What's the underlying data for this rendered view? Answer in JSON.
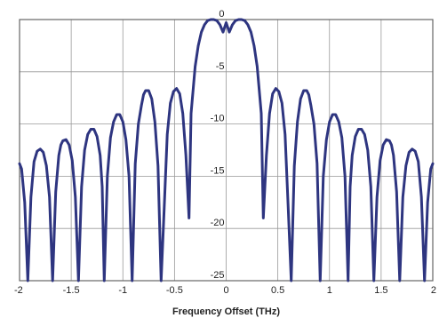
{
  "chart_data": {
    "type": "line",
    "title": "",
    "xlabel": "Frequency Offset (THz)",
    "ylabel": "",
    "xlim": [
      -2,
      2
    ],
    "ylim": [
      -25,
      0
    ],
    "x_ticks": [
      -2,
      -1.5,
      -1,
      -0.5,
      0,
      0.5,
      1,
      1.5,
      2
    ],
    "x_tick_labels": [
      "-2",
      "-1.5",
      "-1",
      "-0.5",
      "0",
      "0.5",
      "1",
      "1.5",
      "2"
    ],
    "y_ticks": [
      0,
      -5,
      -10,
      -15,
      -20,
      -25
    ],
    "y_tick_labels": [
      "0",
      "-5",
      "-10",
      "-15",
      "-20",
      "-25"
    ],
    "grid": true,
    "legend": "none",
    "colors": {
      "line": "#2e3580",
      "grid": "#999999",
      "frame": "#666666"
    },
    "series": [
      {
        "x": [
          -2.0,
          -1.98,
          -1.95,
          -1.92,
          -1.89,
          -1.86,
          -1.83,
          -1.8,
          -1.77,
          -1.74,
          -1.71,
          -1.68,
          -1.65,
          -1.62,
          -1.6,
          -1.58,
          -1.55,
          -1.52,
          -1.49,
          -1.46,
          -1.43,
          -1.4,
          -1.37,
          -1.34,
          -1.31,
          -1.28,
          -1.25,
          -1.22,
          -1.2,
          -1.18,
          -1.15,
          -1.12,
          -1.09,
          -1.06,
          -1.03,
          -1.0,
          -0.97,
          -0.94,
          -0.91,
          -0.88,
          -0.85,
          -0.82,
          -0.8,
          -0.78,
          -0.75,
          -0.72,
          -0.69,
          -0.66,
          -0.63,
          -0.6,
          -0.57,
          -0.54,
          -0.51,
          -0.48,
          -0.45,
          -0.42,
          -0.39,
          -0.36,
          -0.34,
          -0.3,
          -0.27,
          -0.24,
          -0.21,
          -0.18,
          -0.15,
          -0.12,
          -0.09,
          -0.06,
          -0.03,
          0.0,
          0.03,
          0.06,
          0.09,
          0.12,
          0.15,
          0.18,
          0.21,
          0.24,
          0.27,
          0.3,
          0.34,
          0.36,
          0.39,
          0.42,
          0.45,
          0.48,
          0.51,
          0.54,
          0.57,
          0.6,
          0.63,
          0.66,
          0.69,
          0.72,
          0.75,
          0.78,
          0.8,
          0.82,
          0.85,
          0.88,
          0.91,
          0.94,
          0.97,
          1.0,
          1.03,
          1.06,
          1.09,
          1.12,
          1.15,
          1.18,
          1.2,
          1.22,
          1.25,
          1.28,
          1.31,
          1.34,
          1.37,
          1.4,
          1.43,
          1.46,
          1.49,
          1.52,
          1.55,
          1.58,
          1.6,
          1.62,
          1.65,
          1.68,
          1.71,
          1.74,
          1.77,
          1.8,
          1.83,
          1.86,
          1.89,
          1.92,
          1.95,
          1.98,
          2.0
        ],
        "y": [
          -13.8,
          -14.3,
          -17.5,
          -25.0,
          -17.0,
          -13.6,
          -12.6,
          -12.4,
          -12.7,
          -14.0,
          -17.0,
          -25.0,
          -16.5,
          -13.0,
          -12.0,
          -11.6,
          -11.5,
          -12.0,
          -13.5,
          -17.0,
          -25.0,
          -16.0,
          -12.5,
          -11.0,
          -10.5,
          -10.5,
          -11.2,
          -13.0,
          -16.0,
          -25.0,
          -15.0,
          -11.3,
          -9.8,
          -9.1,
          -9.1,
          -9.8,
          -11.5,
          -15.0,
          -25.0,
          -13.8,
          -10.0,
          -8.2,
          -7.2,
          -6.8,
          -6.8,
          -7.6,
          -9.8,
          -14.0,
          -25.0,
          -18.0,
          -11.0,
          -8.0,
          -6.9,
          -6.6,
          -7.1,
          -9.0,
          -13.0,
          -19.0,
          -9.0,
          -4.5,
          -2.5,
          -1.2,
          -0.5,
          -0.1,
          0.0,
          0.0,
          -0.1,
          -0.5,
          -1.2,
          -0.3,
          -1.2,
          -0.5,
          -0.1,
          0.0,
          0.0,
          -0.1,
          -0.5,
          -1.2,
          -2.5,
          -4.5,
          -9.0,
          -19.0,
          -13.0,
          -9.0,
          -7.1,
          -6.6,
          -6.9,
          -8.0,
          -11.0,
          -18.0,
          -25.0,
          -14.0,
          -9.8,
          -7.6,
          -6.8,
          -6.8,
          -7.2,
          -8.2,
          -10.0,
          -13.8,
          -25.0,
          -15.0,
          -11.5,
          -9.8,
          -9.1,
          -9.1,
          -9.8,
          -11.3,
          -15.0,
          -25.0,
          -16.0,
          -13.0,
          -11.2,
          -10.5,
          -10.5,
          -11.0,
          -12.5,
          -16.0,
          -25.0,
          -17.0,
          -13.5,
          -12.0,
          -11.5,
          -11.6,
          -12.0,
          -13.0,
          -16.5,
          -25.0,
          -17.0,
          -14.0,
          -12.7,
          -12.4,
          -12.6,
          -13.6,
          -17.0,
          -25.0,
          -17.5,
          -14.3,
          -13.8
        ]
      }
    ]
  }
}
